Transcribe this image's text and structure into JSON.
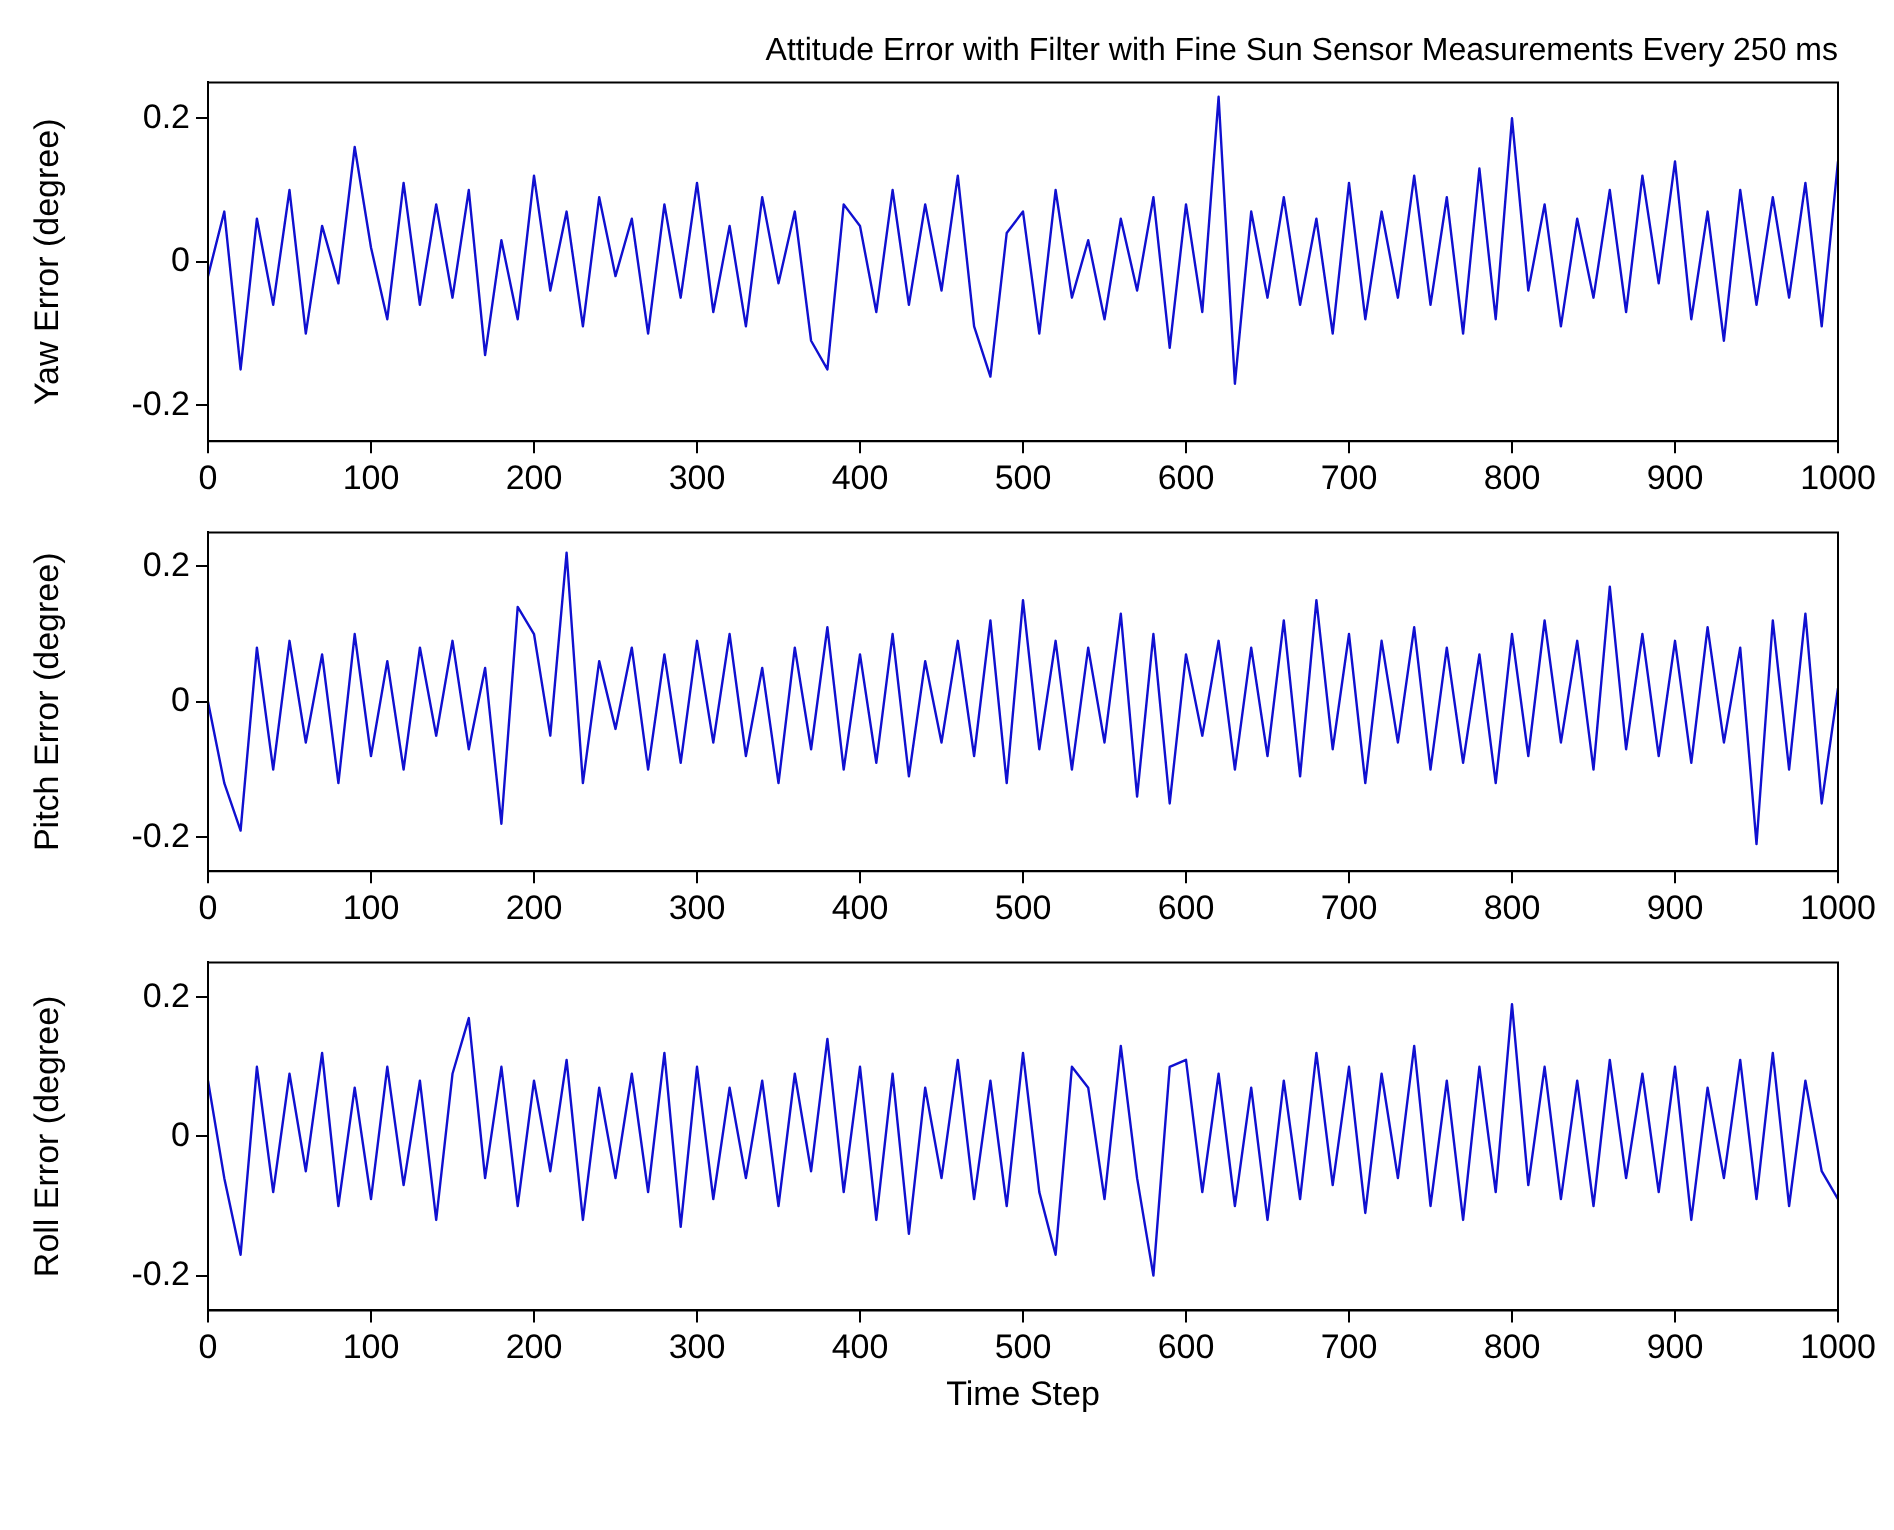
{
  "chart_data": [
    {
      "type": "line",
      "title": "Attitude Error with Filter with Fine Sun Sensor Measurements Every 250 ms",
      "ylabel": "Yaw Error (degree)",
      "xlim": [
        0,
        1000
      ],
      "xticks": [
        0,
        100,
        200,
        300,
        400,
        500,
        600,
        700,
        800,
        900,
        1000
      ],
      "ylim": [
        -0.25,
        0.25
      ],
      "yticks": [
        -0.2,
        0,
        0.2
      ],
      "grid": false,
      "legend": false,
      "marker": "none",
      "line_style": "solid",
      "x": [
        0,
        10,
        20,
        30,
        40,
        50,
        60,
        70,
        80,
        90,
        100,
        110,
        120,
        130,
        140,
        150,
        160,
        170,
        180,
        190,
        200,
        210,
        220,
        230,
        240,
        250,
        260,
        270,
        280,
        290,
        300,
        310,
        320,
        330,
        340,
        350,
        360,
        370,
        380,
        390,
        400,
        410,
        420,
        430,
        440,
        450,
        460,
        470,
        480,
        490,
        500,
        510,
        520,
        530,
        540,
        550,
        560,
        570,
        580,
        590,
        600,
        610,
        620,
        630,
        640,
        650,
        660,
        670,
        680,
        690,
        700,
        710,
        720,
        730,
        740,
        750,
        760,
        770,
        780,
        790,
        800,
        810,
        820,
        830,
        840,
        850,
        860,
        870,
        880,
        890,
        900,
        910,
        920,
        930,
        940,
        950,
        960,
        970,
        980,
        990,
        1000
      ],
      "series": [
        {
          "color": "#1010d0",
          "values": [
            -0.02,
            0.07,
            -0.15,
            0.06,
            -0.06,
            0.1,
            -0.1,
            0.05,
            -0.03,
            0.16,
            0.02,
            -0.08,
            0.11,
            -0.06,
            0.08,
            -0.05,
            0.1,
            -0.13,
            0.03,
            -0.08,
            0.12,
            -0.04,
            0.07,
            -0.09,
            0.09,
            -0.02,
            0.06,
            -0.1,
            0.08,
            -0.05,
            0.11,
            -0.07,
            0.05,
            -0.09,
            0.09,
            -0.03,
            0.07,
            -0.11,
            -0.15,
            0.08,
            0.05,
            -0.07,
            0.1,
            -0.06,
            0.08,
            -0.04,
            0.12,
            -0.09,
            -0.16,
            0.04,
            0.07,
            -0.1,
            0.1,
            -0.05,
            0.03,
            -0.08,
            0.06,
            -0.04,
            0.09,
            -0.12,
            0.08,
            -0.07,
            0.23,
            -0.17,
            0.07,
            -0.05,
            0.09,
            -0.06,
            0.06,
            -0.1,
            0.11,
            -0.08,
            0.07,
            -0.05,
            0.12,
            -0.06,
            0.09,
            -0.1,
            0.13,
            -0.08,
            0.2,
            -0.04,
            0.08,
            -0.09,
            0.06,
            -0.05,
            0.1,
            -0.07,
            0.12,
            -0.03,
            0.14,
            -0.08,
            0.07,
            -0.11,
            0.1,
            -0.06,
            0.09,
            -0.05,
            0.11,
            -0.09,
            0.14
          ]
        }
      ]
    },
    {
      "type": "line",
      "ylabel": "Pitch Error (degree)",
      "xlim": [
        0,
        1000
      ],
      "xticks": [
        0,
        100,
        200,
        300,
        400,
        500,
        600,
        700,
        800,
        900,
        1000
      ],
      "ylim": [
        -0.25,
        0.25
      ],
      "yticks": [
        -0.2,
        0,
        0.2
      ],
      "grid": false,
      "legend": false,
      "marker": "none",
      "line_style": "solid",
      "x": [
        0,
        10,
        20,
        30,
        40,
        50,
        60,
        70,
        80,
        90,
        100,
        110,
        120,
        130,
        140,
        150,
        160,
        170,
        180,
        190,
        200,
        210,
        220,
        230,
        240,
        250,
        260,
        270,
        280,
        290,
        300,
        310,
        320,
        330,
        340,
        350,
        360,
        370,
        380,
        390,
        400,
        410,
        420,
        430,
        440,
        450,
        460,
        470,
        480,
        490,
        500,
        510,
        520,
        530,
        540,
        550,
        560,
        570,
        580,
        590,
        600,
        610,
        620,
        630,
        640,
        650,
        660,
        670,
        680,
        690,
        700,
        710,
        720,
        730,
        740,
        750,
        760,
        770,
        780,
        790,
        800,
        810,
        820,
        830,
        840,
        850,
        860,
        870,
        880,
        890,
        900,
        910,
        920,
        930,
        940,
        950,
        960,
        970,
        980,
        990,
        1000
      ],
      "series": [
        {
          "color": "#1010d0",
          "values": [
            0.0,
            -0.12,
            -0.19,
            0.08,
            -0.1,
            0.09,
            -0.06,
            0.07,
            -0.12,
            0.1,
            -0.08,
            0.06,
            -0.1,
            0.08,
            -0.05,
            0.09,
            -0.07,
            0.05,
            -0.18,
            0.14,
            0.1,
            -0.05,
            0.22,
            -0.12,
            0.06,
            -0.04,
            0.08,
            -0.1,
            0.07,
            -0.09,
            0.09,
            -0.06,
            0.1,
            -0.08,
            0.05,
            -0.12,
            0.08,
            -0.07,
            0.11,
            -0.1,
            0.07,
            -0.09,
            0.1,
            -0.11,
            0.06,
            -0.06,
            0.09,
            -0.08,
            0.12,
            -0.12,
            0.15,
            -0.07,
            0.09,
            -0.1,
            0.08,
            -0.06,
            0.13,
            -0.14,
            0.1,
            -0.15,
            0.07,
            -0.05,
            0.09,
            -0.1,
            0.08,
            -0.08,
            0.12,
            -0.11,
            0.15,
            -0.07,
            0.1,
            -0.12,
            0.09,
            -0.06,
            0.11,
            -0.1,
            0.08,
            -0.09,
            0.07,
            -0.12,
            0.1,
            -0.08,
            0.12,
            -0.06,
            0.09,
            -0.1,
            0.17,
            -0.07,
            0.1,
            -0.08,
            0.09,
            -0.09,
            0.11,
            -0.06,
            0.08,
            -0.21,
            0.12,
            -0.1,
            0.13,
            -0.15,
            0.02
          ]
        }
      ]
    },
    {
      "type": "line",
      "ylabel": "Roll Error (degree)",
      "xlabel": "Time Step",
      "xlim": [
        0,
        1000
      ],
      "xticks": [
        0,
        100,
        200,
        300,
        400,
        500,
        600,
        700,
        800,
        900,
        1000
      ],
      "ylim": [
        -0.25,
        0.25
      ],
      "yticks": [
        -0.2,
        0,
        0.2
      ],
      "grid": false,
      "legend": false,
      "marker": "none",
      "line_style": "solid",
      "x": [
        0,
        10,
        20,
        30,
        40,
        50,
        60,
        70,
        80,
        90,
        100,
        110,
        120,
        130,
        140,
        150,
        160,
        170,
        180,
        190,
        200,
        210,
        220,
        230,
        240,
        250,
        260,
        270,
        280,
        290,
        300,
        310,
        320,
        330,
        340,
        350,
        360,
        370,
        380,
        390,
        400,
        410,
        420,
        430,
        440,
        450,
        460,
        470,
        480,
        490,
        500,
        510,
        520,
        530,
        540,
        550,
        560,
        570,
        580,
        590,
        600,
        610,
        620,
        630,
        640,
        650,
        660,
        670,
        680,
        690,
        700,
        710,
        720,
        730,
        740,
        750,
        760,
        770,
        780,
        790,
        800,
        810,
        820,
        830,
        840,
        850,
        860,
        870,
        880,
        890,
        900,
        910,
        920,
        930,
        940,
        950,
        960,
        970,
        980,
        990,
        1000
      ],
      "series": [
        {
          "color": "#1010d0",
          "values": [
            0.08,
            -0.06,
            -0.17,
            0.1,
            -0.08,
            0.09,
            -0.05,
            0.12,
            -0.1,
            0.07,
            -0.09,
            0.1,
            -0.07,
            0.08,
            -0.12,
            0.09,
            0.17,
            -0.06,
            0.1,
            -0.1,
            0.08,
            -0.05,
            0.11,
            -0.12,
            0.07,
            -0.06,
            0.09,
            -0.08,
            0.12,
            -0.13,
            0.1,
            -0.09,
            0.07,
            -0.06,
            0.08,
            -0.1,
            0.09,
            -0.05,
            0.14,
            -0.08,
            0.1,
            -0.12,
            0.09,
            -0.14,
            0.07,
            -0.06,
            0.11,
            -0.09,
            0.08,
            -0.1,
            0.12,
            -0.08,
            -0.17,
            0.1,
            0.07,
            -0.09,
            0.13,
            -0.06,
            -0.2,
            0.1,
            0.11,
            -0.08,
            0.09,
            -0.1,
            0.07,
            -0.12,
            0.08,
            -0.09,
            0.12,
            -0.07,
            0.1,
            -0.11,
            0.09,
            -0.06,
            0.13,
            -0.1,
            0.08,
            -0.12,
            0.1,
            -0.08,
            0.19,
            -0.07,
            0.1,
            -0.09,
            0.08,
            -0.1,
            0.11,
            -0.06,
            0.09,
            -0.08,
            0.1,
            -0.12,
            0.07,
            -0.06,
            0.11,
            -0.09,
            0.12,
            -0.1,
            0.08,
            -0.05,
            -0.09
          ]
        }
      ]
    }
  ]
}
